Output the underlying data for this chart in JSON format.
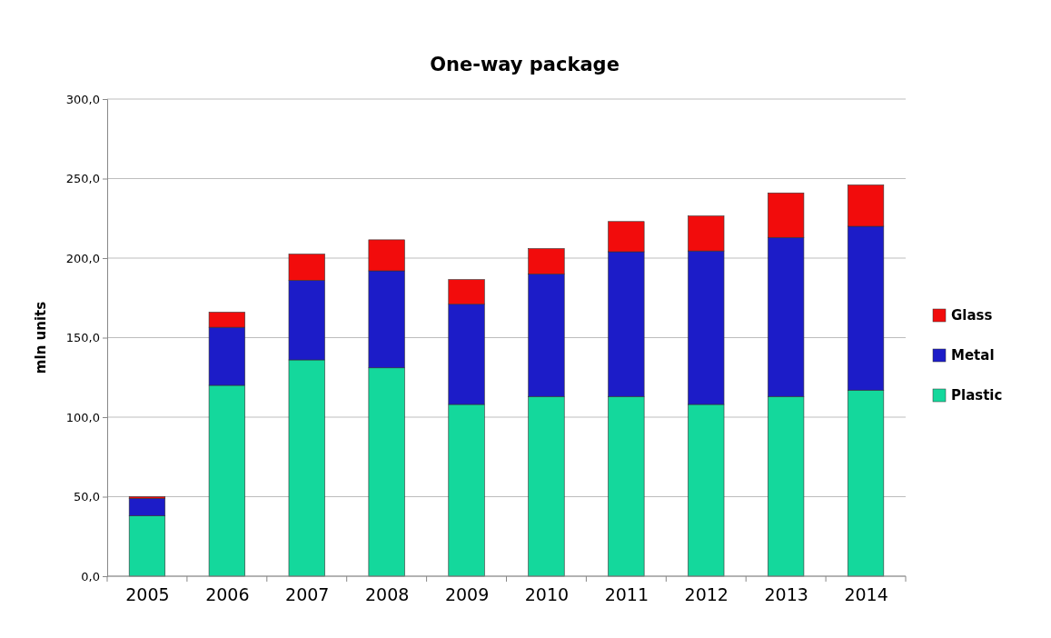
{
  "chart_data": {
    "type": "bar",
    "title": "One-way package",
    "ylabel": "mln units",
    "stacked": true,
    "categories": [
      "2005",
      "2006",
      "2007",
      "2008",
      "2009",
      "2010",
      "2011",
      "2012",
      "2013",
      "2014"
    ],
    "series": [
      {
        "name": "Plastic",
        "color": "#14d89c",
        "values": [
          38,
          120,
          136,
          131,
          108,
          113,
          113,
          108,
          113,
          117
        ]
      },
      {
        "name": "Metal",
        "color": "#1c1cc8",
        "values": [
          11,
          36.5,
          50,
          61,
          63,
          77,
          91,
          96.5,
          100,
          103
        ]
      },
      {
        "name": "Glass",
        "color": "#f20c0c",
        "values": [
          1,
          9.5,
          16.5,
          19.5,
          15.5,
          16,
          19,
          22,
          28,
          26
        ]
      }
    ],
    "ylim": [
      0,
      300
    ],
    "yticks": [
      {
        "value": 0,
        "label": "0,0"
      },
      {
        "value": 50,
        "label": "50,0"
      },
      {
        "value": 100,
        "label": "100,0"
      },
      {
        "value": 150,
        "label": "150,0"
      },
      {
        "value": 200,
        "label": "200,0"
      },
      {
        "value": 250,
        "label": "250,0"
      },
      {
        "value": 300,
        "label": "300,0"
      }
    ],
    "grid": "y",
    "legend": "right"
  }
}
